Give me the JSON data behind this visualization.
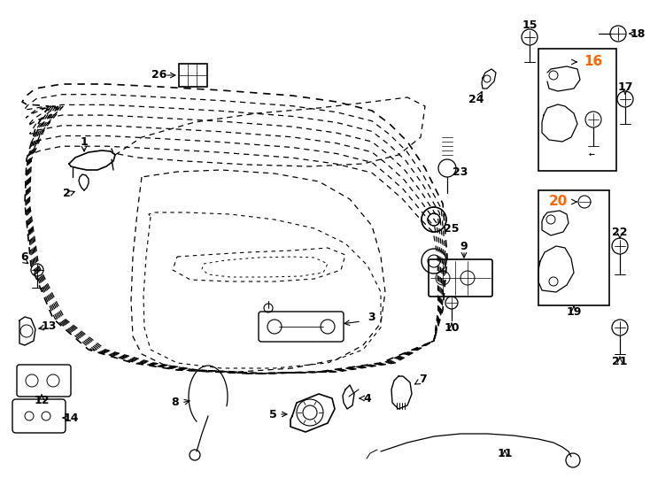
{
  "background_color": "#ffffff",
  "line_color": "#000000",
  "highlight_color": "#ff6600",
  "fig_width": 7.34,
  "fig_height": 5.4,
  "dpi": 100
}
